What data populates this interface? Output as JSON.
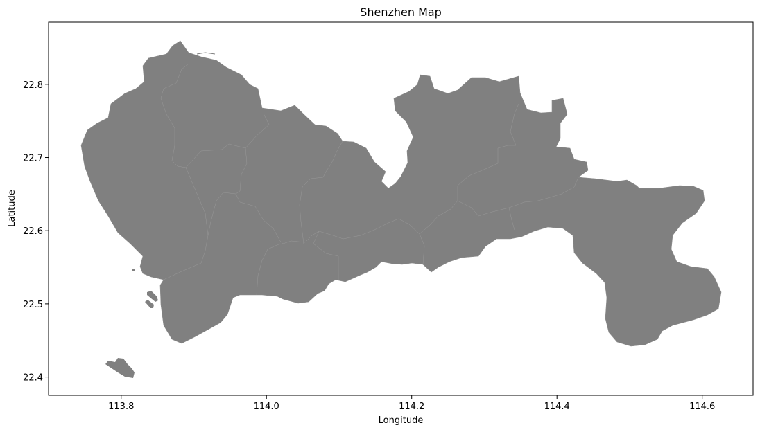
{
  "figure": {
    "title": "Shenzhen Map",
    "xlabel": "Longitude",
    "ylabel": "Latitude"
  },
  "map": {
    "fill_color": "#808080",
    "boundary_color": "#8c8c8c",
    "background_color": "#ffffff"
  },
  "chart_data": {
    "type": "map",
    "title": "Shenzhen Map",
    "xlabel": "Longitude",
    "ylabel": "Latitude",
    "xlim": [
      113.7,
      114.67
    ],
    "ylim": [
      22.375,
      22.885
    ],
    "xticks": [
      {
        "value": 113.8,
        "label": "113.8"
      },
      {
        "value": 114.0,
        "label": "114.0"
      },
      {
        "value": 114.2,
        "label": "114.2"
      },
      {
        "value": 114.4,
        "label": "114.4"
      },
      {
        "value": 114.6,
        "label": "114.6"
      }
    ],
    "yticks": [
      {
        "value": 22.4,
        "label": "22.4"
      },
      {
        "value": 22.5,
        "label": "22.5"
      },
      {
        "value": 22.6,
        "label": "22.6"
      },
      {
        "value": 22.7,
        "label": "22.7"
      },
      {
        "value": 22.8,
        "label": "22.8"
      }
    ],
    "grid": false,
    "legend": "none"
  }
}
